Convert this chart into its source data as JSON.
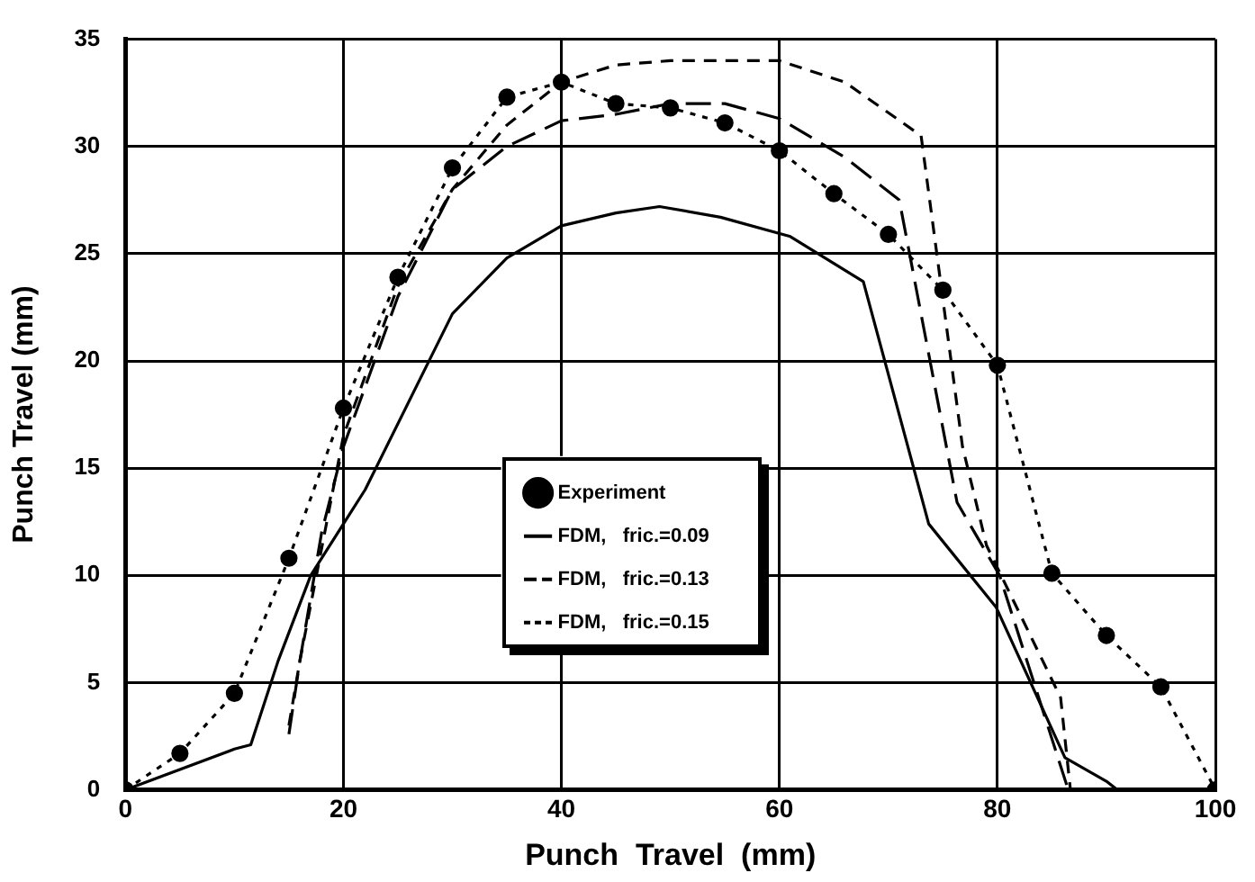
{
  "chart_data": {
    "type": "line",
    "xlabel": "Punch  Travel  (mm)",
    "ylabel": "Punch Travel (mm)",
    "xlim": [
      0,
      100
    ],
    "xticks": [
      0,
      20,
      40,
      60,
      80,
      100
    ],
    "ylim": [
      0,
      35
    ],
    "yticks": [
      0,
      5,
      10,
      15,
      20,
      25,
      30,
      35
    ],
    "grid": true,
    "legend": "center",
    "series": [
      {
        "name": "Experiment",
        "color": "#000000",
        "marker": "circle",
        "line_style": "dotted",
        "x": [
          0,
          5,
          10,
          15,
          20,
          25,
          30,
          35,
          40,
          45,
          50,
          55,
          60,
          65,
          70,
          75,
          80,
          85,
          90,
          95,
          100
        ],
        "values": [
          0,
          1.7,
          4.5,
          10.8,
          17.8,
          23.9,
          29,
          32.3,
          33,
          32,
          31.8,
          31.1,
          29.8,
          27.8,
          25.9,
          23.3,
          19.8,
          10.1,
          7.2,
          4.8,
          0
        ]
      },
      {
        "name": "FDM,   fric.=0.09",
        "color": "#000000",
        "marker": "none",
        "line_style": "solid",
        "x": [
          0,
          10,
          11.5,
          14,
          17,
          20,
          22,
          30,
          35,
          40,
          45,
          49,
          54.6,
          61,
          67.7,
          73.7,
          79.9,
          86.2,
          90,
          91
        ],
        "values": [
          0,
          1.9,
          2.1,
          6,
          10,
          12.4,
          14,
          22.2,
          24.8,
          26.3,
          26.9,
          27.2,
          26.7,
          25.8,
          23.7,
          12.4,
          8.5,
          1.5,
          0.4,
          0
        ]
      },
      {
        "name": "FDM,   fric.=0.13",
        "color": "#000000",
        "marker": "none",
        "line_style": "dashed",
        "x": [
          15,
          16,
          18,
          20,
          25,
          30,
          35,
          40,
          45,
          50,
          55,
          60,
          66,
          71,
          76.3,
          80.2,
          86.5
        ],
        "values": [
          2.6,
          6,
          12,
          16,
          23,
          28,
          30,
          31.2,
          31.5,
          32,
          32,
          31.3,
          29.5,
          27.5,
          13.4,
          10,
          0
        ]
      },
      {
        "name": "FDM,   fric.=0.15",
        "color": "#000000",
        "marker": "none",
        "line_style": "dashed",
        "x": [
          15,
          16,
          20,
          25,
          30,
          35,
          40,
          45,
          50,
          60,
          66,
          73,
          76.8,
          79,
          85.8,
          86.7
        ],
        "values": [
          3,
          6,
          16.5,
          23.5,
          28,
          31,
          33,
          33.8,
          34,
          34,
          33,
          30.5,
          16,
          11.4,
          4.3,
          0
        ]
      }
    ]
  }
}
